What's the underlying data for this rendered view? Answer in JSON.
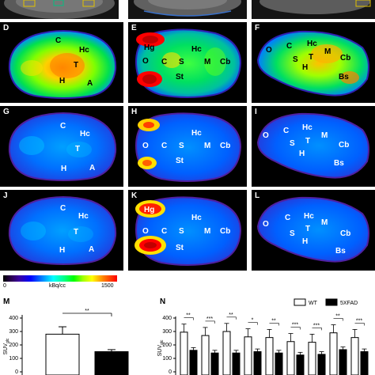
{
  "panels": {
    "D": {
      "label": "D",
      "regions": [
        "C",
        "Hc",
        "T",
        "H",
        "A"
      ]
    },
    "E": {
      "label": "E",
      "regions": [
        "Hg",
        "O",
        "C",
        "S",
        "Hc",
        "M",
        "Cb",
        "St"
      ]
    },
    "F": {
      "label": "F",
      "regions": [
        "O",
        "C",
        "Hc",
        "S",
        "T",
        "M",
        "H",
        "Cb",
        "Bs"
      ]
    },
    "G": {
      "label": "G",
      "regions": [
        "C",
        "Hc",
        "T",
        "H",
        "A"
      ]
    },
    "H": {
      "label": "H",
      "regions": [
        "O",
        "C",
        "S",
        "Hc",
        "M",
        "Cb",
        "St"
      ]
    },
    "I": {
      "label": "I",
      "regions": [
        "O",
        "C",
        "Hc",
        "S",
        "T",
        "M",
        "H",
        "Cb",
        "Bs"
      ]
    },
    "J": {
      "label": "J",
      "regions": [
        "C",
        "Hc",
        "T",
        "H",
        "A"
      ]
    },
    "K": {
      "label": "K",
      "regions": [
        "Hg",
        "O",
        "C",
        "S",
        "Hc",
        "M",
        "Cb",
        "St"
      ]
    },
    "L": {
      "label": "L",
      "regions": [
        "O",
        "C",
        "Hc",
        "S",
        "T",
        "M",
        "H",
        "Cb",
        "Bs"
      ]
    }
  },
  "colorbar": {
    "min": "0",
    "unit": "kBq/cc",
    "max": "1500"
  },
  "chart_data": [
    {
      "type": "bar",
      "panel_label": "M",
      "ylabel": "SUVglc",
      "ylim": [
        0,
        400
      ],
      "yticks": [
        "0",
        "100",
        "200",
        "300",
        "400"
      ],
      "series": [
        {
          "values": [
            280,
            150
          ]
        }
      ],
      "colors": [
        "#ffffff",
        "#000000"
      ],
      "significance": "**"
    },
    {
      "type": "bar",
      "panel_label": "N",
      "ylabel": "SUVglc",
      "ylim": [
        0,
        400
      ],
      "yticks": [
        "0",
        "100",
        "200",
        "300",
        "400"
      ],
      "legend": [
        "WT",
        "5XFAD"
      ],
      "series": [
        {
          "name": "WT",
          "values": [
            295,
            270,
            300,
            260,
            255,
            225,
            220,
            290,
            255
          ]
        },
        {
          "name": "5XFAD",
          "values": [
            160,
            140,
            140,
            150,
            140,
            125,
            130,
            165,
            150
          ]
        }
      ],
      "significance": [
        "**",
        "***",
        "**",
        "*",
        "**",
        "***",
        "***",
        "**",
        "***"
      ]
    }
  ]
}
